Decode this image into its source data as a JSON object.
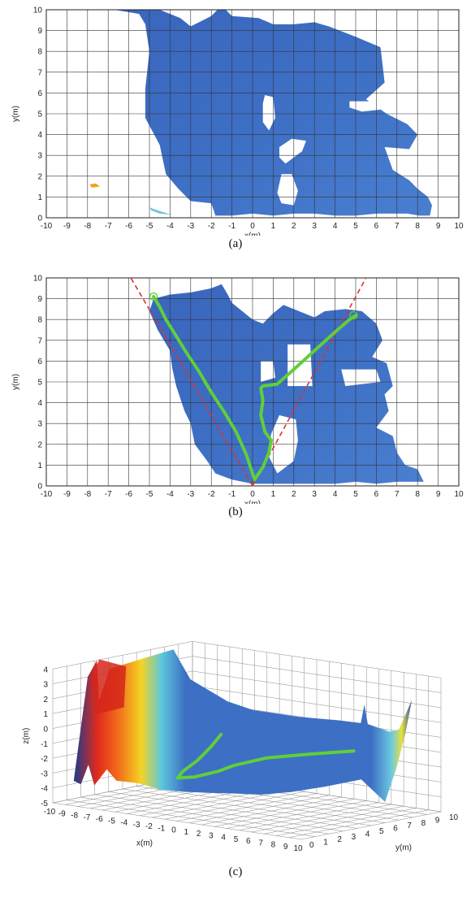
{
  "panels": [
    {
      "caption": "(a)",
      "chart_data": {
        "type": "heatmap",
        "title": "",
        "xlabel": "x(m)",
        "ylabel": "y(m)",
        "xlim": [
          -10,
          10
        ],
        "ylim": [
          0,
          10
        ],
        "xticks": [
          "-10",
          "-9",
          "-8",
          "-7",
          "-6",
          "-5",
          "-4",
          "-3",
          "-2",
          "-1",
          "0",
          "1",
          "2",
          "3",
          "4",
          "5",
          "6",
          "7",
          "8",
          "9",
          "10"
        ],
        "yticks": [
          "0",
          "1",
          "2",
          "3",
          "4",
          "5",
          "6",
          "7",
          "8",
          "9",
          "10"
        ],
        "grid": true,
        "colors": {
          "surface": "#3d6fc4",
          "surface_light": "#5b8ad6",
          "hole": "#ffffff",
          "orange_patch": "#f0a020",
          "cyan_patch": "#6fc2d8"
        },
        "region_outline": [
          [
            -6.7,
            10
          ],
          [
            -4.5,
            10
          ],
          [
            -3.5,
            9.6
          ],
          [
            -3,
            9.2
          ],
          [
            -2,
            9.7
          ],
          [
            -1.7,
            10
          ],
          [
            -1.3,
            10
          ],
          [
            -1,
            9.7
          ],
          [
            0.3,
            9.6
          ],
          [
            1,
            9.3
          ],
          [
            2,
            9.3
          ],
          [
            3,
            9.4
          ],
          [
            3.7,
            9.2
          ],
          [
            5,
            8.7
          ],
          [
            6.2,
            8.2
          ],
          [
            6.3,
            7.4
          ],
          [
            6.4,
            6.5
          ],
          [
            5.5,
            5.7
          ],
          [
            6.5,
            5
          ],
          [
            7.5,
            4.5
          ],
          [
            8,
            4.0
          ],
          [
            7.6,
            3.3
          ],
          [
            6.4,
            3.4
          ],
          [
            6.8,
            2.3
          ],
          [
            7.6,
            1.8
          ],
          [
            8,
            1.4
          ],
          [
            8.5,
            1.0
          ],
          [
            8.7,
            0.6
          ],
          [
            8.6,
            0.1
          ],
          [
            8.1,
            0.1
          ],
          [
            7.5,
            0.2
          ],
          [
            6,
            0.2
          ],
          [
            5,
            0.1
          ],
          [
            4,
            0.1
          ],
          [
            3,
            0.2
          ],
          [
            2,
            0.2
          ],
          [
            1,
            0.1
          ],
          [
            0,
            0.2
          ],
          [
            -1,
            0.1
          ],
          [
            -1.8,
            0.1
          ],
          [
            -2,
            0.7
          ],
          [
            -3,
            0.8
          ],
          [
            -3.6,
            1.4
          ],
          [
            -4.2,
            2.1
          ],
          [
            -4.5,
            3.5
          ],
          [
            -5.2,
            4.8
          ],
          [
            -5.2,
            6.2
          ],
          [
            -5,
            8
          ],
          [
            -5.2,
            9.3
          ],
          [
            -5.5,
            9.8
          ]
        ],
        "holes": [
          [
            [
              0.6,
              5.9
            ],
            [
              1,
              5.8
            ],
            [
              1.1,
              4.8
            ],
            [
              0.8,
              4.2
            ],
            [
              0.5,
              4.6
            ],
            [
              0.5,
              5.5
            ]
          ],
          [
            [
              4.7,
              5.6
            ],
            [
              5.9,
              5.6
            ],
            [
              6.2,
              5.2
            ],
            [
              5.3,
              5.1
            ],
            [
              4.7,
              5.3
            ]
          ],
          [
            [
              1.3,
              3.4
            ],
            [
              1.9,
              3.8
            ],
            [
              2.6,
              3.7
            ],
            [
              2.4,
              3.2
            ],
            [
              1.6,
              2.6
            ],
            [
              1.3,
              2.9
            ]
          ],
          [
            [
              1.4,
              2.1
            ],
            [
              1.9,
              2.1
            ],
            [
              2.2,
              1.3
            ],
            [
              2.0,
              0.6
            ],
            [
              1.4,
              0.7
            ],
            [
              1.2,
              1.2
            ]
          ],
          [
            [
              6.6,
              8.4
            ],
            [
              8.4,
              8.4
            ],
            [
              8.4,
              9.9
            ],
            [
              6.8,
              9.9
            ]
          ]
        ],
        "patches": [
          {
            "name": "orange",
            "points": [
              [
                -7.9,
                1.6
              ],
              [
                -7.6,
                1.65
              ],
              [
                -7.4,
                1.5
              ],
              [
                -7.8,
                1.45
              ]
            ]
          },
          {
            "name": "cyan",
            "points": [
              [
                -5,
                0.5
              ],
              [
                -4.6,
                0.35
              ],
              [
                -4.1,
                0.2
              ],
              [
                -3.9,
                0.15
              ],
              [
                -4.5,
                0.2
              ],
              [
                -4.9,
                0.35
              ]
            ]
          }
        ]
      }
    },
    {
      "caption": "(b)",
      "chart_data": {
        "type": "heatmap",
        "title": "",
        "xlabel": "x(m)",
        "ylabel": "y(m)",
        "xlim": [
          -10,
          10
        ],
        "ylim": [
          0,
          10
        ],
        "xticks": [
          "-10",
          "-9",
          "-8",
          "-7",
          "-6",
          "-5",
          "-4",
          "-3",
          "-2",
          "-1",
          "0",
          "1",
          "2",
          "3",
          "4",
          "5",
          "6",
          "7",
          "8",
          "9",
          "10"
        ],
        "yticks": [
          "0",
          "1",
          "2",
          "3",
          "4",
          "5",
          "6",
          "7",
          "8",
          "9",
          "10"
        ],
        "grid": true,
        "colors": {
          "surface": "#3d6fc4",
          "path": "#5fcf3a",
          "fov": "#e03030"
        },
        "region_outline": [
          [
            -4.8,
            9.0
          ],
          [
            -4,
            9.2
          ],
          [
            -3,
            9.3
          ],
          [
            -2.5,
            9.4
          ],
          [
            -2,
            9.5
          ],
          [
            -1.5,
            9.7
          ],
          [
            -1.2,
            9.2
          ],
          [
            -1,
            8.8
          ],
          [
            0,
            8.0
          ],
          [
            0.5,
            7.8
          ],
          [
            1,
            8.3
          ],
          [
            1.5,
            8.7
          ],
          [
            2.5,
            8.3
          ],
          [
            3,
            8.1
          ],
          [
            3.5,
            8.4
          ],
          [
            4.5,
            8.5
          ],
          [
            5.3,
            8.4
          ],
          [
            6,
            7.8
          ],
          [
            6.3,
            7.0
          ],
          [
            5.8,
            6.2
          ],
          [
            6.5,
            5.9
          ],
          [
            6.8,
            4.8
          ],
          [
            6.4,
            4.4
          ],
          [
            6.6,
            3.6
          ],
          [
            6.0,
            2.8
          ],
          [
            6.8,
            2.4
          ],
          [
            7,
            1.6
          ],
          [
            7.4,
            1.0
          ],
          [
            8.0,
            0.8
          ],
          [
            8.3,
            0.2
          ],
          [
            7,
            0.2
          ],
          [
            6,
            0.1
          ],
          [
            5,
            0.2
          ],
          [
            4,
            0.1
          ],
          [
            3,
            0.1
          ],
          [
            2,
            0.1
          ],
          [
            1,
            0.1
          ],
          [
            0,
            0.1
          ],
          [
            -1,
            0.3
          ],
          [
            -1.8,
            0.6
          ],
          [
            -2.2,
            1.2
          ],
          [
            -2.8,
            2.0
          ],
          [
            -3.0,
            3.0
          ],
          [
            -3.3,
            3.6
          ],
          [
            -3.7,
            4.8
          ],
          [
            -3.9,
            5.7
          ],
          [
            -4.0,
            6.5
          ],
          [
            -4.6,
            7.5
          ],
          [
            -5.0,
            8.4
          ]
        ],
        "holes": [
          [
            [
              0.4,
              6.0
            ],
            [
              1,
              6.0
            ],
            [
              1.1,
              5.2
            ],
            [
              0.4,
              5.0
            ]
          ],
          [
            [
              4.3,
              5.6
            ],
            [
              6,
              5.6
            ],
            [
              6.2,
              5.0
            ],
            [
              4.5,
              4.8
            ]
          ],
          [
            [
              1.7,
              6.8
            ],
            [
              2.8,
              6.8
            ],
            [
              2.9,
              4.8
            ],
            [
              1.7,
              4.8
            ]
          ],
          [
            [
              1.3,
              3.4
            ],
            [
              2.1,
              3.2
            ],
            [
              2.2,
              2.2
            ],
            [
              2.0,
              1.2
            ],
            [
              1.2,
              0.6
            ],
            [
              0.8,
              1.4
            ],
            [
              0.9,
              2.5
            ]
          ]
        ],
        "fov_lines": [
          {
            "x": [
              0,
              -5.9
            ],
            "y": [
              0,
              10
            ]
          },
          {
            "x": [
              0,
              5.5
            ],
            "y": [
              0,
              10
            ]
          }
        ],
        "path": {
          "x": [
            -4.8,
            -4.5,
            -4.2,
            -3.7,
            -3.2,
            -2.6,
            -2.0,
            -1.4,
            -0.8,
            -0.3,
            0.1,
            0.5,
            0.8,
            0.9,
            0.6,
            0.4,
            0.5,
            0.4,
            0.5,
            1.2,
            2.0,
            3.0,
            4.0,
            4.7,
            5.0
          ],
          "y": [
            9.1,
            8.6,
            8.0,
            7.2,
            6.4,
            5.5,
            4.5,
            3.6,
            2.6,
            1.5,
            0.3,
            0.9,
            1.6,
            2.2,
            2.6,
            3.4,
            4.1,
            4.7,
            4.8,
            4.9,
            5.6,
            6.5,
            7.4,
            8.0,
            8.2
          ]
        },
        "endpoints": [
          {
            "x": -4.8,
            "y": 9.1
          },
          {
            "x": 4.9,
            "y": 8.2
          }
        ]
      }
    },
    {
      "caption": "(c)",
      "chart_data": {
        "type": "area",
        "title": "",
        "xlabel": "x(m)",
        "ylabel": "y(m)",
        "zlabel": "z(m)",
        "xlim": [
          -10,
          10
        ],
        "ylim": [
          0,
          10
        ],
        "zlim": [
          -5,
          4
        ],
        "xticks": [
          "-10",
          "-9",
          "-8",
          "-7",
          "-6",
          "-5",
          "-4",
          "-3",
          "-2",
          "-1",
          "0",
          "1",
          "2",
          "3",
          "4",
          "5",
          "6",
          "7",
          "8",
          "9",
          "10"
        ],
        "yticks": [
          "0",
          "1",
          "2",
          "3",
          "4",
          "5",
          "6",
          "7",
          "8",
          "9",
          "10"
        ],
        "zticks": [
          "4",
          "3",
          "2",
          "1",
          "0",
          "-1",
          "-2",
          "-3",
          "-4",
          "-5"
        ],
        "grid": true,
        "colors": {
          "surface": "#3d6fc4",
          "high": "#e23020",
          "mid": "#f0d020",
          "path": "#5fcf3a"
        }
      }
    }
  ]
}
